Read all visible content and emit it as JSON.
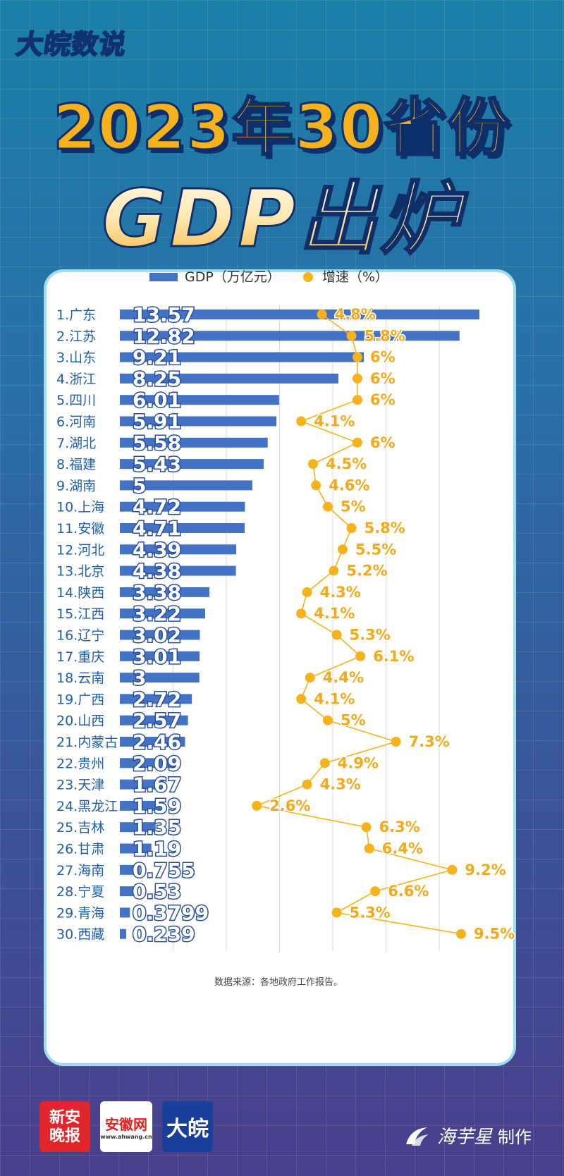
{
  "brand": "大皖数说",
  "title_line1": "2023年30省份",
  "title_line2": "GDP出炉",
  "legend": {
    "gdp": "GDP（万亿元）",
    "growth": "增速（%）"
  },
  "source": "数据来源：各地政府工作报告。",
  "logos": {
    "xinan": "新安晚报",
    "ahwang": "安徽网",
    "ahwang_url": "www.ahwang.cn",
    "dawan": "大皖"
  },
  "maker": {
    "name": "海芋星",
    "suffix": "制作"
  },
  "colors": {
    "bar": "#4472c4",
    "line": "#f5b21b",
    "title": "#f6b21c",
    "grid": "#d9d9d9"
  },
  "chart_data": {
    "type": "bar",
    "categories": [
      "1.广东",
      "2.江苏",
      "3.山东",
      "4.浙江",
      "5.四川",
      "6.河南",
      "7.湖北",
      "8.福建",
      "9.湖南",
      "10.上海",
      "11.安徽",
      "12.河北",
      "13.北京",
      "14.陕西",
      "15.江西",
      "16.辽宁",
      "17.重庆",
      "18.云南",
      "19.广西",
      "20.山西",
      "21.内蒙古",
      "22.贵州",
      "23.天津",
      "24.黑龙江",
      "25.吉林",
      "26.甘肃",
      "27.海南",
      "28.宁夏",
      "29.青海",
      "30.西藏"
    ],
    "gdp_labels": [
      "13.57",
      "12.82",
      "9.21",
      "8.25",
      "6.01",
      "5.91",
      "5.58",
      "5.43",
      "5",
      "4.72",
      "4.71",
      "4.39",
      "4.38",
      "3.38",
      "3.22",
      "3.02",
      "3.01",
      "3",
      "2.72",
      "2.57",
      "2.46",
      "2.09",
      "1.67",
      "1.59",
      "1.35",
      "1.19",
      "0.755",
      "0.53",
      "0.3799",
      "0.239"
    ],
    "growth_labels": [
      "4.8%",
      "5.8%",
      "6%",
      "6%",
      "6%",
      "4.1%",
      "6%",
      "4.5%",
      "4.6%",
      "5%",
      "5.8%",
      "5.5%",
      "5.2%",
      "4.3%",
      "4.1%",
      "5.3%",
      "6.1%",
      "4.4%",
      "4.1%",
      "5%",
      "7.3%",
      "4.9%",
      "4.3%",
      "2.6%",
      "6.3%",
      "6.4%",
      "9.2%",
      "6.6%",
      "5.3%",
      "9.5%"
    ],
    "series": [
      {
        "name": "GDP（万亿元）",
        "type": "bar",
        "values": [
          13.57,
          12.82,
          9.21,
          8.25,
          6.01,
          5.91,
          5.58,
          5.43,
          5,
          4.72,
          4.71,
          4.39,
          4.38,
          3.38,
          3.22,
          3.02,
          3.01,
          3,
          2.72,
          2.57,
          2.46,
          2.09,
          1.67,
          1.59,
          1.35,
          1.19,
          0.755,
          0.53,
          0.3799,
          0.239
        ]
      },
      {
        "name": "增速（%）",
        "type": "line",
        "values": [
          4.8,
          5.8,
          6,
          6,
          6,
          4.1,
          6,
          4.5,
          4.6,
          5,
          5.8,
          5.5,
          5.2,
          4.3,
          4.1,
          5.3,
          6.1,
          4.4,
          4.1,
          5,
          7.3,
          4.9,
          4.3,
          2.6,
          6.3,
          6.4,
          9.2,
          6.6,
          5.3,
          9.5
        ]
      }
    ],
    "orientation": "horizontal",
    "gdp_range": [
      0,
      13.57
    ],
    "growth_range": [
      0,
      10
    ],
    "grid": true,
    "legend_position": "top"
  }
}
